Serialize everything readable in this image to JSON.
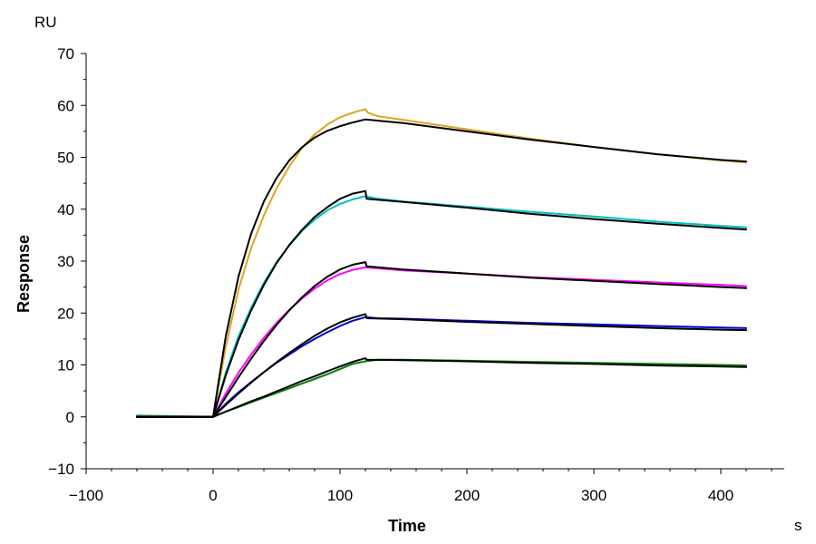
{
  "chart_data": {
    "type": "line",
    "title": "",
    "xlabel": "Time",
    "ylabel": "Response",
    "x_unit": "s",
    "y_unit": "RU",
    "xlim": [
      -100,
      450
    ],
    "ylim": [
      -10,
      70
    ],
    "x_ticks": [
      -100,
      0,
      100,
      200,
      300,
      400
    ],
    "y_ticks": [
      -10,
      0,
      10,
      20,
      30,
      40,
      50,
      60,
      70
    ],
    "grid": false,
    "legend": "none",
    "series": [
      {
        "color": "#DAA520",
        "x": [
          -60,
          0,
          10,
          20,
          30,
          40,
          50,
          60,
          70,
          80,
          90,
          100,
          110,
          120,
          122,
          130,
          150,
          200,
          250,
          300,
          350,
          400,
          420
        ],
        "y": [
          0.3,
          0,
          13.5,
          24.5,
          32.5,
          38.8,
          44,
          48.2,
          51.8,
          54.4,
          56.3,
          57.7,
          58.6,
          59.3,
          58.6,
          57.9,
          57.2,
          55.4,
          53.6,
          52.0,
          50.6,
          49.4,
          49.0
        ]
      },
      {
        "color": "#00BFBF",
        "x": [
          -60,
          0,
          10,
          20,
          30,
          40,
          50,
          60,
          70,
          80,
          90,
          100,
          110,
          120,
          130,
          150,
          200,
          250,
          300,
          350,
          400,
          420
        ],
        "y": [
          0.2,
          0,
          8.5,
          15.5,
          21.0,
          25.8,
          29.8,
          33.0,
          35.8,
          38.0,
          39.8,
          41.0,
          41.9,
          42.5,
          42.0,
          41.5,
          40.5,
          39.5,
          38.6,
          37.6,
          36.8,
          36.5
        ]
      },
      {
        "color": "#FF00FF",
        "x": [
          -60,
          0,
          10,
          20,
          30,
          40,
          50,
          60,
          70,
          80,
          90,
          100,
          110,
          120,
          130,
          150,
          200,
          250,
          300,
          350,
          400,
          420
        ],
        "y": [
          0,
          0,
          4.5,
          8.5,
          12.0,
          15.2,
          18.1,
          20.6,
          22.8,
          24.7,
          26.3,
          27.5,
          28.3,
          28.8,
          28.6,
          28.2,
          27.6,
          26.9,
          26.4,
          25.9,
          25.4,
          25.2
        ]
      },
      {
        "color": "#0000CD",
        "x": [
          -60,
          0,
          10,
          20,
          30,
          40,
          50,
          60,
          70,
          80,
          90,
          100,
          110,
          120,
          130,
          150,
          200,
          250,
          300,
          350,
          400,
          420
        ],
        "y": [
          0,
          0,
          2.5,
          4.7,
          6.7,
          8.6,
          10.4,
          12.0,
          13.6,
          15.0,
          16.3,
          17.5,
          18.5,
          19.2,
          19.0,
          18.9,
          18.5,
          18.1,
          17.8,
          17.5,
          17.2,
          17.1
        ]
      },
      {
        "color": "#008000",
        "x": [
          -60,
          0,
          10,
          20,
          30,
          40,
          50,
          60,
          70,
          80,
          90,
          100,
          110,
          120,
          130,
          150,
          200,
          250,
          300,
          350,
          400,
          420
        ],
        "y": [
          0,
          0,
          1.0,
          1.9,
          2.8,
          3.7,
          4.6,
          5.5,
          6.4,
          7.3,
          8.2,
          9.2,
          10.2,
          10.7,
          11.0,
          11.0,
          10.8,
          10.6,
          10.4,
          10.2,
          10.0,
          9.9
        ]
      },
      {
        "color": "#000000",
        "x": [
          -60,
          0,
          10,
          20,
          30,
          40,
          50,
          60,
          70,
          80,
          90,
          100,
          110,
          120,
          150,
          200,
          250,
          300,
          350,
          400,
          420
        ],
        "y": [
          0,
          0,
          15.5,
          27.0,
          35.3,
          41.5,
          46.0,
          49.4,
          51.9,
          53.8,
          55.1,
          56.0,
          56.7,
          57.3,
          56.6,
          55.0,
          53.4,
          52.0,
          50.6,
          49.5,
          49.2
        ]
      },
      {
        "color": "#000000",
        "x": [
          -60,
          0,
          10,
          20,
          30,
          40,
          50,
          60,
          70,
          80,
          90,
          100,
          110,
          120,
          121,
          150,
          200,
          250,
          300,
          350,
          400,
          420
        ],
        "y": [
          0,
          0,
          8.0,
          14.8,
          20.5,
          25.4,
          29.6,
          33.1,
          36.0,
          38.5,
          40.4,
          42.0,
          43.0,
          43.5,
          42.0,
          41.4,
          40.3,
          39.1,
          38.1,
          37.2,
          36.4,
          36.1
        ]
      },
      {
        "color": "#000000",
        "x": [
          -60,
          0,
          10,
          20,
          30,
          40,
          50,
          60,
          70,
          80,
          90,
          100,
          110,
          120,
          121,
          150,
          200,
          250,
          300,
          350,
          400,
          420
        ],
        "y": [
          0,
          0,
          3.8,
          7.6,
          11.2,
          14.6,
          17.7,
          20.5,
          23.0,
          25.2,
          27.0,
          28.4,
          29.3,
          29.8,
          29.0,
          28.4,
          27.6,
          26.8,
          26.2,
          25.6,
          25.0,
          24.8
        ]
      },
      {
        "color": "#000000",
        "x": [
          -60,
          0,
          10,
          20,
          30,
          40,
          50,
          60,
          70,
          80,
          90,
          100,
          110,
          120,
          121,
          150,
          200,
          250,
          300,
          350,
          400,
          420
        ],
        "y": [
          0,
          0,
          2.3,
          4.5,
          6.6,
          8.6,
          10.5,
          12.3,
          14.0,
          15.6,
          17.0,
          18.2,
          19.1,
          19.8,
          19.0,
          18.8,
          18.3,
          17.9,
          17.5,
          17.1,
          16.8,
          16.7
        ]
      },
      {
        "color": "#000000",
        "x": [
          -60,
          0,
          10,
          20,
          30,
          40,
          50,
          60,
          70,
          80,
          90,
          100,
          110,
          120,
          121,
          150,
          200,
          250,
          300,
          350,
          400,
          420
        ],
        "y": [
          0,
          0,
          1.0,
          2.0,
          3.0,
          3.9,
          4.9,
          5.9,
          6.9,
          7.8,
          8.8,
          9.7,
          10.6,
          11.3,
          11.0,
          10.9,
          10.7,
          10.4,
          10.2,
          9.9,
          9.7,
          9.6
        ]
      }
    ]
  }
}
